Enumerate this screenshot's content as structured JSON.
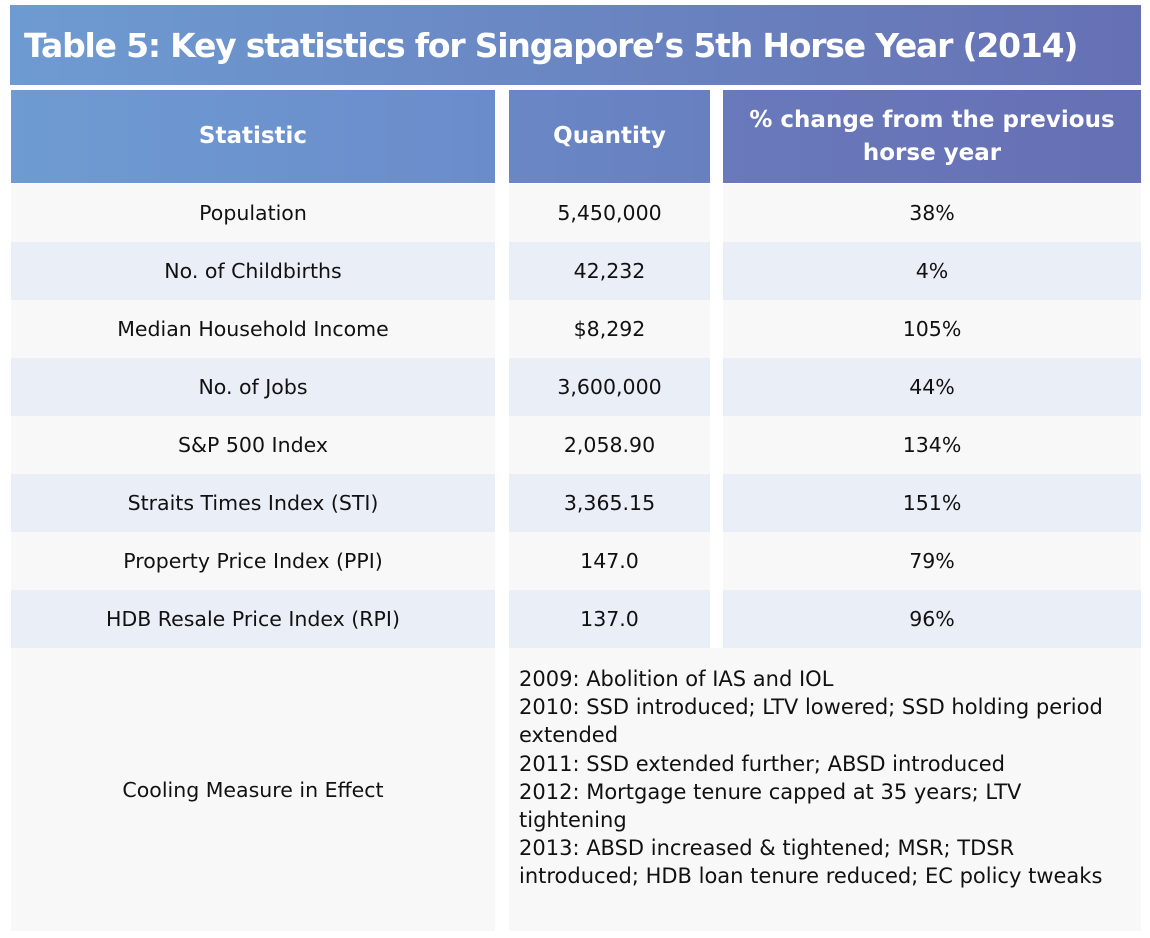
{
  "title": "Table 5: Key statistics for Singapore’s 5th Horse Year (2014)",
  "colors": {
    "header_gradient_start": "#6e9bd2",
    "header_gradient_end": "#6670b4",
    "row_light": "#f8f8f8",
    "row_tinted": "#e9eef7"
  },
  "table": {
    "headers": [
      "Statistic",
      "Quantity",
      "% change from the previous horse year"
    ],
    "rows": [
      {
        "statistic": "Population",
        "quantity": "5,450,000",
        "change": "38%"
      },
      {
        "statistic": "No. of Childbirths",
        "quantity": "42,232",
        "change": "4%"
      },
      {
        "statistic": "Median Household Income",
        "quantity": "$8,292",
        "change": "105%"
      },
      {
        "statistic": "No. of Jobs",
        "quantity": "3,600,000",
        "change": "44%"
      },
      {
        "statistic": "S&P 500 Index",
        "quantity": "2,058.90",
        "change": "134%"
      },
      {
        "statistic": "Straits Times Index (STI)",
        "quantity": "3,365.15",
        "change": "151%"
      },
      {
        "statistic": "Property Price Index (PPI)",
        "quantity": "147.0",
        "change": "79%"
      },
      {
        "statistic": "HDB Resale Price Index (RPI)",
        "quantity": "137.0",
        "change": "96%"
      }
    ],
    "cooling": {
      "label": "Cooling Measure in Effect",
      "measures": [
        "2009: Abolition of IAS and IOL",
        "2010: SSD introduced; LTV lowered; SSD holding period extended",
        "2011: SSD extended further; ABSD introduced",
        "2012: Mortgage tenure capped at 35 years; LTV tightening",
        "2013: ABSD increased & tightened; MSR; TDSR introduced; HDB loan tenure reduced; EC policy tweaks"
      ]
    }
  }
}
